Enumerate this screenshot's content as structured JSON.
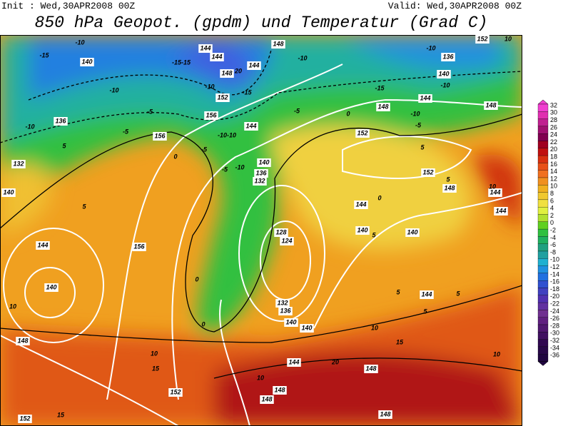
{
  "header": {
    "init": "Init : Wed,30APR2008 00Z",
    "valid": "Valid: Wed,30APR2008 00Z",
    "title": "850 hPa Geopot. (gpdm) und Temperatur (Grad C)"
  },
  "colorbar": {
    "labels": [
      "32",
      "30",
      "28",
      "26",
      "24",
      "22",
      "20",
      "18",
      "16",
      "14",
      "12",
      "10",
      "8",
      "6",
      "4",
      "2",
      "0",
      "-2",
      "-4",
      "-6",
      "-8",
      "-10",
      "-12",
      "-14",
      "-16",
      "-18",
      "-20",
      "-22",
      "-24",
      "-26",
      "-28",
      "-30",
      "-32",
      "-34",
      "-36"
    ]
  },
  "map_labels": [
    "-10",
    "-15",
    "140",
    "-10",
    "136",
    "-10",
    "-5",
    "-10",
    "152",
    "156",
    "156",
    "-10-10",
    "-5",
    "0",
    "-5",
    "5",
    "132",
    "140",
    "5",
    "144",
    "140",
    "156",
    "10",
    "148",
    "10",
    "15",
    "152",
    "152",
    "15",
    "10",
    "148",
    "148",
    "20",
    "148",
    "15",
    "10",
    "10",
    "148",
    "140",
    "144",
    "132",
    "136",
    "140",
    "128",
    "124",
    "0",
    "0",
    "140",
    "136",
    "132",
    "144",
    "-5",
    "-10",
    "0",
    "-5",
    "-10",
    "148",
    "144",
    "144",
    "-15-15",
    "148",
    "20",
    "144",
    "-15",
    "148",
    "152",
    "5",
    "152",
    "5",
    "148",
    "144",
    "0",
    "140",
    "140",
    "5",
    "144",
    "5",
    "5",
    "5",
    "144",
    "144",
    "10",
    "-10",
    "136",
    "140",
    "-10",
    "-15",
    "144",
    "-10",
    "-5",
    "148",
    "152",
    "10"
  ]
}
